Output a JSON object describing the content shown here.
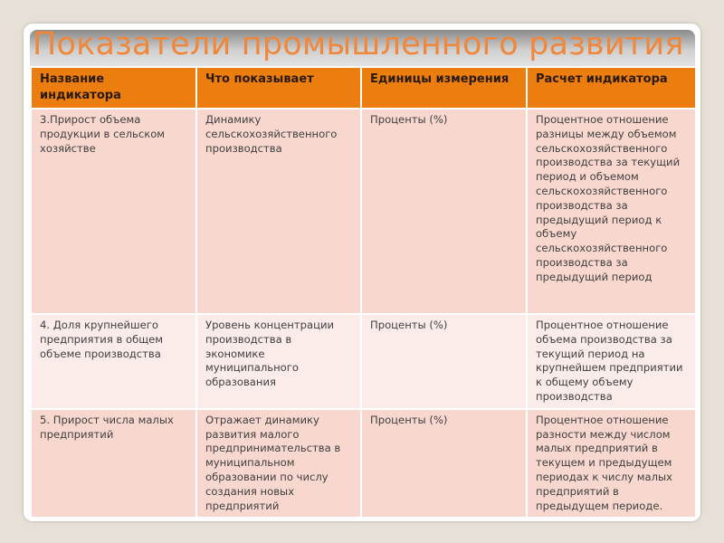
{
  "title": "Показатели промышленного развития",
  "table": {
    "headers": [
      "Название индикатора",
      "Что показывает",
      "Единицы измерения",
      "Расчет индикатора"
    ],
    "rows": [
      [
        "3.Прирост объема продукции в сельском хозяйстве",
        "Динамику сельскохозяйственного производства",
        "Проценты (%)",
        "Процентное отношение разницы между объемом сельскохозяйственного производства за текущий период и объемом сельскохозяйственного производства за предыдущий период к объему сельскохозяйственного производства за предыдущий период"
      ],
      [
        "4. Доля крупнейшего предприятия в общем объеме производства",
        "Уровень концентрации производства в экономике муниципального образования",
        "Проценты (%)",
        "Процентное отношение объема производства за текущий период на крупнейшем предприятии к общему объему производства"
      ],
      [
        "5. Прирост числа малых предприятий",
        "Отражает динамику развития малого предпринимательства в муниципальном образовании по числу создания новых предприятий",
        "Проценты (%)",
        "Процентное отношение разности между числом малых предприятий в текущем и предыдущем периодах к числу малых предприятий в предыдущем периоде."
      ]
    ]
  },
  "colors": {
    "header": "#ec7d0f",
    "title": "#f0873a",
    "row_dark": "#f8d7ce",
    "row_light": "#fbecea"
  }
}
